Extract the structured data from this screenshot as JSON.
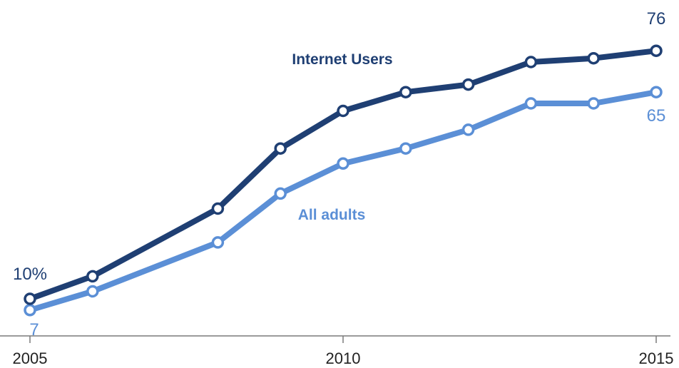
{
  "chart_data": {
    "type": "line",
    "x": [
      2005,
      2006,
      2008,
      2009,
      2010,
      2011,
      2012,
      2013,
      2014,
      2015
    ],
    "xticks": [
      "2005",
      "2010",
      "2015"
    ],
    "xlim": [
      2005,
      2015
    ],
    "ylim": [
      0,
      80
    ],
    "grid": false,
    "legend": "inline labels next to lines",
    "series": [
      {
        "name": "Internet Users",
        "color": "#1f3f73",
        "values": [
          10,
          16,
          34,
          50,
          60,
          65,
          67,
          73,
          74,
          76
        ],
        "labels": {
          "first": "10%",
          "last": "76"
        }
      },
      {
        "name": "All adults",
        "color": "#5b8fd6",
        "values": [
          7,
          12,
          25,
          38,
          46,
          50,
          55,
          62,
          62,
          65
        ],
        "labels": {
          "first": "7",
          "last": "65"
        }
      }
    ]
  }
}
